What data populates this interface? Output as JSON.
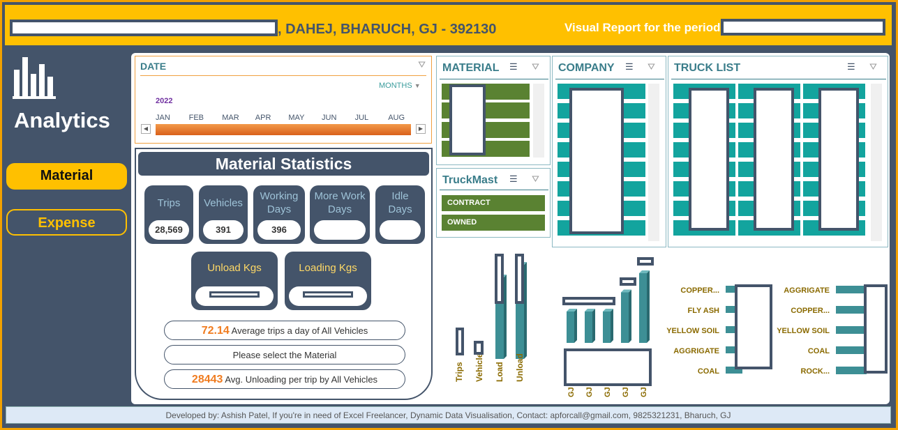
{
  "header": {
    "address": ", DAHEJ,  BHARUCH, GJ - 392130",
    "period_label": "Visual Report for the period of"
  },
  "sidebar": {
    "title": "Analytics",
    "buttons": [
      {
        "label": "Material",
        "active": true
      },
      {
        "label": "Expense",
        "active": false
      }
    ],
    "colors": {
      "active_bg": "#ffc000",
      "inactive_text": "#ffc000",
      "panel_bg": "#44546a"
    }
  },
  "date_timeline": {
    "title": "DATE",
    "level": "MONTHS",
    "year": "2022",
    "months": [
      "JAN",
      "FEB",
      "MAR",
      "APR",
      "MAY",
      "JUN",
      "JUL",
      "AUG"
    ]
  },
  "stats": {
    "title": "Material Statistics",
    "kpis": [
      {
        "label": "Trips",
        "value": "28,569"
      },
      {
        "label": "Vehicles",
        "value": "391"
      },
      {
        "label": "Working Days",
        "value": "396"
      },
      {
        "label": "More Work Days",
        "value": ""
      },
      {
        "label": "Idle Days",
        "value": ""
      }
    ],
    "unload_label": "Unload Kgs",
    "loading_label": "Loading Kgs",
    "avg_trips_value": "72.14",
    "avg_trips_text": "Average trips a day of All Vehicles",
    "select_text": "Please select the Material",
    "avg_unload_value": "28443",
    "avg_unload_text": "Avg. Unloading per trip by All Vehicles"
  },
  "slicers": {
    "material": {
      "title": "MATERIAL"
    },
    "truckmast": {
      "title": "TruckMast",
      "items": [
        "CONTRACT",
        "OWNED"
      ]
    },
    "company": {
      "title": "COMPANY"
    },
    "truck_list": {
      "title": "TRUCK LIST"
    }
  },
  "chart_data": [
    {
      "type": "bar",
      "categories": [
        "Trips",
        "Vehicles",
        "Load",
        "Unload"
      ],
      "values": [
        null,
        null,
        78,
        90
      ]
    },
    {
      "type": "bar",
      "categories": [
        "GJ",
        "GJ",
        "GJ",
        "GJ",
        "GJ"
      ],
      "values": [
        36,
        36,
        36,
        58,
        80
      ]
    },
    {
      "type": "bar",
      "orientation": "horizontal",
      "categories": [
        "COPPER...",
        "FLY ASH",
        "YELLOW SOIL",
        "AGGRIGATE",
        "COAL"
      ]
    },
    {
      "type": "bar",
      "orientation": "horizontal",
      "categories": [
        "AGGRIGATE",
        "COPPER...",
        "YELLOW SOIL",
        "COAL",
        "ROCK..."
      ]
    }
  ],
  "footer": {
    "text": "Developed by: Ashish Patel, If you're in need of Excel Freelancer, Dynamic Data Visualisation, Contact: apforcall@gmail.com, 9825321231, Bharuch, GJ"
  }
}
